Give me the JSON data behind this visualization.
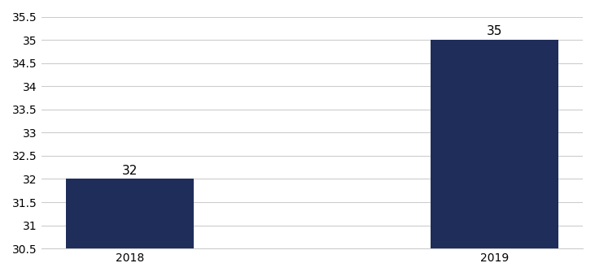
{
  "categories": [
    "2018",
    "2019"
  ],
  "values": [
    32,
    35
  ],
  "bar_color": "#1f2d5a",
  "ylim": [
    30.5,
    35.5
  ],
  "ytick_step": 0.5,
  "bar_width": 0.35,
  "label_fontsize": 11,
  "tick_fontsize": 10,
  "grid_color": "#cccccc",
  "background_color": "#ffffff"
}
